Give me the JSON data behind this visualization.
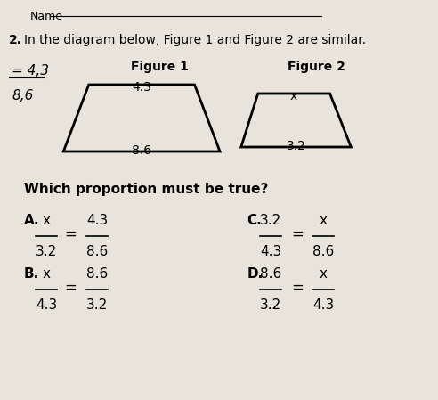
{
  "bg_color": "#e8e4dc",
  "title_line": "In the diagram below, Figure 1 and Figure 2 are similar.",
  "question_num": "2.",
  "name_label": "Name",
  "fig1_label": "Figure 1",
  "fig2_label": "Figure 2",
  "fig1_top": "4.3",
  "fig1_bottom": "8.6",
  "fig2_top": "x",
  "fig2_bottom": "3.2",
  "question": "Which proportion must be true?",
  "A_label": "A.",
  "A_num": "x",
  "A_den": "3.2",
  "A_eq": "=",
  "A_rnum": "4.3",
  "A_rden": "8.6",
  "B_label": "B.",
  "B_num": "x",
  "B_den": "4.3",
  "B_eq": "=",
  "B_rnum": "8.6",
  "B_rden": "3.2",
  "C_label": "C.",
  "C_lnum": "3.2",
  "C_lden": "4.3",
  "C_eq": "=",
  "C_rnum": "x",
  "C_rden": "8.6",
  "D_label": "D.",
  "D_lnum": "8.6",
  "D_lden": "3.2",
  "D_eq": "=",
  "D_rnum": "x",
  "D_rden": "4.3",
  "handwritten_num": "4,3",
  "handwritten_den": "8,6"
}
